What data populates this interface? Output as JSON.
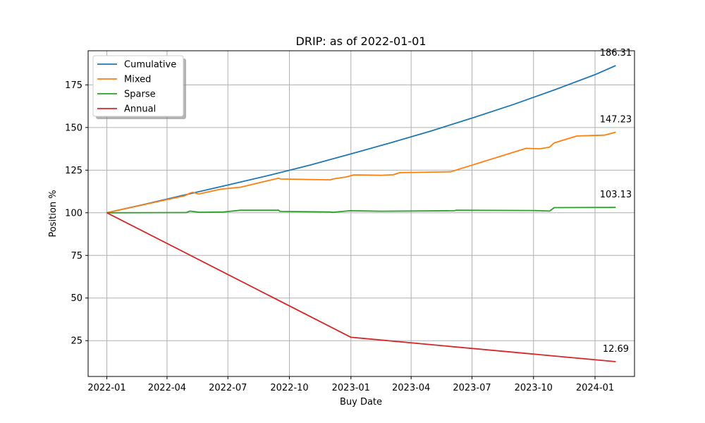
{
  "chart_data": {
    "type": "line",
    "title": "DRIP: as of 2022-01-01",
    "xlabel": "Buy Date",
    "ylabel": "Position %",
    "x_ticks": [
      "2022-01-01",
      "2022-04-01",
      "2022-07-01",
      "2022-10-01",
      "2023-01-01",
      "2023-04-01",
      "2023-07-01",
      "2023-10-01",
      "2024-01-01"
    ],
    "x_tick_labels": [
      "2022-01",
      "2022-04",
      "2022-07",
      "2022-10",
      "2023-01",
      "2023-04",
      "2023-07",
      "2023-10",
      "2024-01"
    ],
    "xlim": [
      "2021-12-04",
      "2024-02-29"
    ],
    "y_ticks": [
      25,
      50,
      75,
      100,
      125,
      150,
      175
    ],
    "ylim": [
      4.0,
      195.0
    ],
    "grid": true,
    "legend_position": "upper-left",
    "series": [
      {
        "name": "Cumulative",
        "color": "#1f77b4",
        "end_label": "186.31",
        "points": [
          [
            "2022-01-01",
            100.0
          ],
          [
            "2022-03-01",
            105.2
          ],
          [
            "2022-05-01",
            110.8
          ],
          [
            "2022-07-01",
            116.3
          ],
          [
            "2022-09-01",
            122.0
          ],
          [
            "2022-11-01",
            128.0
          ],
          [
            "2023-01-01",
            134.5
          ],
          [
            "2023-03-01",
            141.0
          ],
          [
            "2023-05-01",
            148.0
          ],
          [
            "2023-07-01",
            155.5
          ],
          [
            "2023-09-01",
            163.5
          ],
          [
            "2023-11-01",
            172.0
          ],
          [
            "2024-01-01",
            181.0
          ],
          [
            "2024-02-01",
            186.31
          ]
        ]
      },
      {
        "name": "Mixed",
        "color": "#ff7f0e",
        "end_label": "147.23",
        "points": [
          [
            "2022-01-01",
            100.0
          ],
          [
            "2022-04-28",
            110.0
          ],
          [
            "2022-05-05",
            111.5
          ],
          [
            "2022-05-10",
            112.0
          ],
          [
            "2022-05-18",
            111.0
          ],
          [
            "2022-06-20",
            113.8
          ],
          [
            "2022-07-20",
            115.0
          ],
          [
            "2022-09-15",
            120.3
          ],
          [
            "2022-09-18",
            119.8
          ],
          [
            "2022-12-01",
            119.3
          ],
          [
            "2022-12-05",
            119.8
          ],
          [
            "2022-12-25",
            121.0
          ],
          [
            "2023-01-05",
            122.2
          ],
          [
            "2023-02-15",
            122.0
          ],
          [
            "2023-03-05",
            122.3
          ],
          [
            "2023-03-15",
            123.5
          ],
          [
            "2023-05-30",
            124.0
          ],
          [
            "2023-09-20",
            137.8
          ],
          [
            "2023-10-10",
            137.5
          ],
          [
            "2023-10-25",
            138.5
          ],
          [
            "2023-11-01",
            141.0
          ],
          [
            "2023-12-05",
            145.0
          ],
          [
            "2024-01-15",
            145.5
          ],
          [
            "2024-02-01",
            147.23
          ]
        ]
      },
      {
        "name": "Sparse",
        "color": "#2ca02c",
        "end_label": "103.13",
        "points": [
          [
            "2022-01-01",
            100.0
          ],
          [
            "2022-04-30",
            100.1
          ],
          [
            "2022-05-05",
            101.0
          ],
          [
            "2022-05-20",
            100.3
          ],
          [
            "2022-06-25",
            100.5
          ],
          [
            "2022-07-20",
            101.5
          ],
          [
            "2022-09-15",
            101.5
          ],
          [
            "2022-09-17",
            100.8
          ],
          [
            "2022-12-01",
            100.5
          ],
          [
            "2022-12-05",
            100.3
          ],
          [
            "2022-12-31",
            101.2
          ],
          [
            "2023-02-15",
            100.9
          ],
          [
            "2023-06-05",
            101.2
          ],
          [
            "2023-06-07",
            101.5
          ],
          [
            "2023-10-01",
            101.3
          ],
          [
            "2023-10-25",
            101.0
          ],
          [
            "2023-11-01",
            103.0
          ],
          [
            "2024-02-01",
            103.13
          ]
        ]
      },
      {
        "name": "Annual",
        "color": "#d62728",
        "end_label": "12.69",
        "points": [
          [
            "2022-01-01",
            100.0
          ],
          [
            "2023-01-01",
            27.0
          ],
          [
            "2024-02-01",
            12.69
          ]
        ]
      }
    ]
  }
}
